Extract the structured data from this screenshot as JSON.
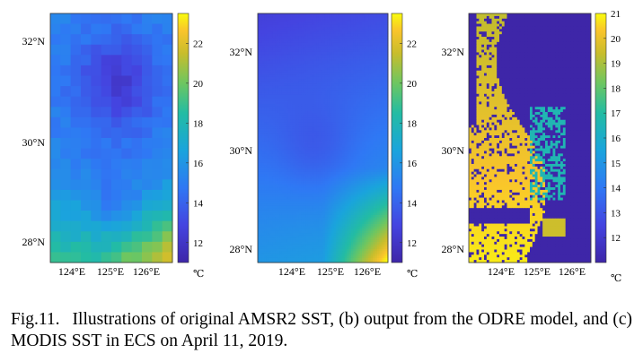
{
  "chart_data": [
    {
      "type": "heatmap",
      "title": "",
      "x_ticks": [
        "124°E",
        "125°E",
        "126°E"
      ],
      "y_ticks": [
        "28°N",
        "30°N",
        "32°N"
      ],
      "colorbar_ticks": [
        "12",
        "14",
        "16",
        "18",
        "20",
        "22"
      ],
      "colorbar_unit": "℃",
      "colorbar_range": [
        11,
        23.5
      ],
      "colormap": "parula",
      "field": "coarse-grid SST; ~15-16 ℃ in the north, 12-13 ℃ centre-north, rising to 20-23 ℃ in the south-east corner"
    },
    {
      "type": "heatmap",
      "title": "",
      "x_ticks": [
        "124°E",
        "125°E",
        "126°E"
      ],
      "y_ticks": [
        "28°N",
        "30°N",
        "32°N"
      ],
      "colorbar_ticks": [
        "12",
        "14",
        "16",
        "18",
        "20",
        "22"
      ],
      "colorbar_unit": "℃",
      "colorbar_range": [
        11,
        23.5
      ],
      "colormap": "parula",
      "field": "smooth SST; ~12-13 ℃ in the north, 15-17 ℃ centre, 19-22 ℃ in the south-east"
    },
    {
      "type": "heatmap",
      "title": "",
      "x_ticks": [
        "124°E",
        "125°E",
        "126°E"
      ],
      "y_ticks": [
        "28°N",
        "30°N",
        "32°N"
      ],
      "colorbar_ticks": [
        "12",
        "13",
        "14",
        "15",
        "16",
        "17",
        "18",
        "19",
        "20",
        "21"
      ],
      "colorbar_unit": "℃",
      "colorbar_range": [
        11,
        21
      ],
      "colormap": "parula",
      "field": "patchy SST with cloud gaps filled at the minimum; 18-21 ℃ along the western side, 16-17 ℃ patches in the middle-east"
    }
  ],
  "caption": {
    "label": "Fig.11.",
    "text": "Illustrations of original AMSR2 SST, (b) output from the ODRE model, and (c) MODIS SST in ECS on April 11, 2019."
  }
}
